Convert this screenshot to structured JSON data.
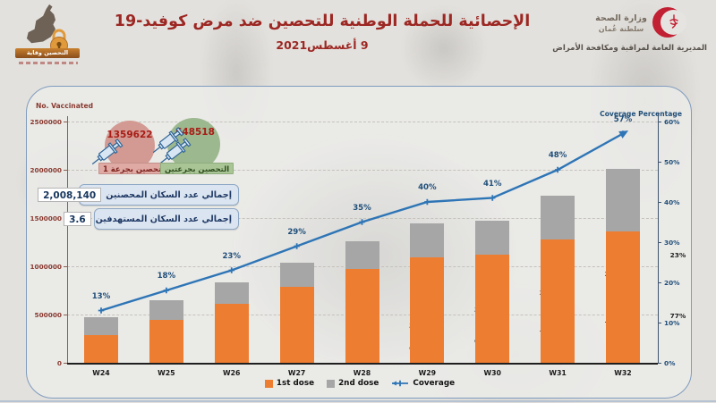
{
  "header": {
    "title": "الإحصائية للحملة الوطنية للتحصين ضد مرض كوفيد-19",
    "date": "9 أغسطس2021",
    "campaign_banner": "التحصين وقاية",
    "ministry": {
      "name": "وزارة الصحة",
      "country": "سلطنة عُمان",
      "directorate": "المديرية العامة لمراقبة ومكافحة الأمراض"
    }
  },
  "stats": {
    "dose1": {
      "value": "1359622",
      "label": "التحصين بجرعة 1",
      "circle_color": "#d29a92"
    },
    "dose2": {
      "value": "648518",
      "label": "التحصين بجرعتين",
      "circle_color": "#9cb88f"
    },
    "total_vaccinated": {
      "value": "2,008,140",
      "label": "إجمالي عدد السكان المحصنين"
    },
    "target_population": {
      "value": "3.6",
      "label": "إجمالي عدد السكان المستهدفين"
    }
  },
  "chart_data": {
    "type": "combo-stacked-bar-line",
    "categories": [
      "W24",
      "W25",
      "W26",
      "W27",
      "W28",
      "W29",
      "W30",
      "W31",
      "W32"
    ],
    "series": [
      {
        "name": "1st dose",
        "chart": "stacked-bar",
        "unit": "% of bar",
        "color": "#ED7D31",
        "values": [
          62,
          68,
          74,
          76,
          77,
          76,
          76,
          74,
          68
        ]
      },
      {
        "name": "2nd dose",
        "chart": "stacked-bar",
        "unit": "% of bar",
        "color": "#A6A6A6",
        "values": [
          38,
          32,
          26,
          24,
          23,
          24,
          24,
          26,
          32
        ]
      },
      {
        "name": "Coverage",
        "chart": "line",
        "unit": "%",
        "color": "#2E75B6",
        "values": [
          13,
          18,
          23,
          29,
          35,
          40,
          41,
          48,
          57
        ]
      }
    ],
    "bar_totals_estimated": [
      470000,
      650000,
      830000,
      1040000,
      1260000,
      1440000,
      1470000,
      1730000,
      2008140
    ],
    "left_axis": {
      "title": "No. Vaccinated",
      "min": 0,
      "max": 2500000,
      "ticks": [
        "0",
        "500000",
        "1000000",
        "1500000",
        "2000000",
        "2500000"
      ]
    },
    "right_axis": {
      "title": "Coverage Percentage",
      "min": 0,
      "max": 60,
      "ticks": [
        "0%",
        "10%",
        "20%",
        "30%",
        "40%",
        "50%",
        "60%"
      ]
    },
    "grid": "horizontal-dashed",
    "legend_position": "bottom-center",
    "label_colors": {
      "coverage_label": "#1F4E79",
      "bar_label": "#1f1f1f"
    }
  }
}
